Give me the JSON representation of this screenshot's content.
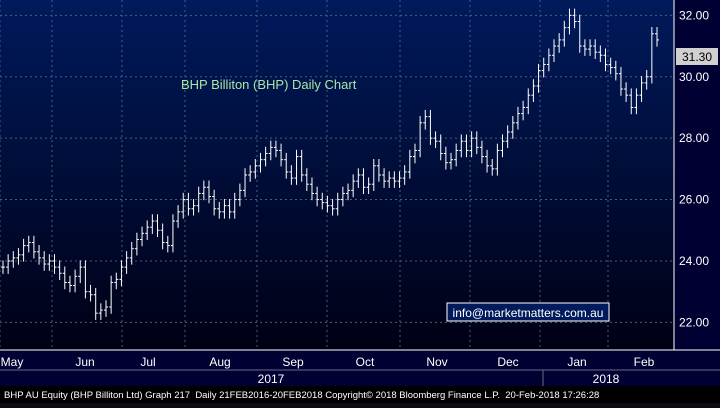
{
  "chart_data": {
    "type": "ohlc",
    "title": "BHP Billiton (BHP) Daily Chart",
    "watermark": "info@marketmatters.com.au",
    "last_price_label": "31.30",
    "y_ticks": [
      "22.00",
      "24.00",
      "26.00",
      "28.00",
      "30.00",
      "32.00"
    ],
    "ylim": [
      21.1,
      32.5
    ],
    "x_month_labels": [
      "May",
      "Jun",
      "Jul",
      "Aug",
      "Sep",
      "Oct",
      "Nov",
      "Dec",
      "Jan",
      "Feb"
    ],
    "year_labels": [
      "2017",
      "2018"
    ],
    "grid": true,
    "colors": {
      "background": "#000033",
      "plot_bg_top": "#001a5c",
      "plot_bg_bottom": "#000014",
      "bars": "#ffffff",
      "title": "#a8e6a8",
      "grid": "#4d5c7a",
      "axis_text": "#ffffff",
      "watermark_border": "#ffffff",
      "watermark_text": "#ffffff"
    },
    "series": [
      {
        "values": [
          23.8,
          24.0,
          24.1,
          24.2,
          24.5,
          24.6,
          24.3,
          24.1,
          23.9,
          24.0,
          23.8,
          23.6,
          23.3,
          23.2,
          23.5,
          23.8,
          23.0,
          22.9,
          22.3,
          22.4,
          22.5,
          23.3,
          23.4,
          23.8,
          24.1,
          24.4,
          24.7,
          24.9,
          25.1,
          25.3,
          25.0,
          24.6,
          24.5,
          25.3,
          25.6,
          26.0,
          25.7,
          25.8,
          26.2,
          26.4,
          26.1,
          25.7,
          25.6,
          25.8,
          25.6,
          26.0,
          26.3,
          26.8,
          26.9,
          27.1,
          27.3,
          27.5,
          27.7,
          27.6,
          27.3,
          26.9,
          26.7,
          27.4,
          26.8,
          26.5,
          26.2,
          26.0,
          25.9,
          25.8,
          25.7,
          26.0,
          26.2,
          26.3,
          26.6,
          26.8,
          26.4,
          26.5,
          27.1,
          26.8,
          26.6,
          26.7,
          26.6,
          26.7,
          26.9,
          27.4,
          27.6,
          28.5,
          28.7,
          28.0,
          27.9,
          27.5,
          27.2,
          27.3,
          27.6,
          27.9,
          27.6,
          28.0,
          27.7,
          27.4,
          27.1,
          27.0,
          27.6,
          27.9,
          28.2,
          28.5,
          28.8,
          29.0,
          29.4,
          29.7,
          30.2,
          30.4,
          30.7,
          31.0,
          31.2,
          31.6,
          32.0,
          31.8,
          31.0,
          30.9,
          31.0,
          30.8,
          30.7,
          30.4,
          30.3,
          30.1,
          29.6,
          29.4,
          29.0,
          29.4,
          29.8,
          30.0,
          31.4,
          31.2
        ]
      }
    ]
  }
}
